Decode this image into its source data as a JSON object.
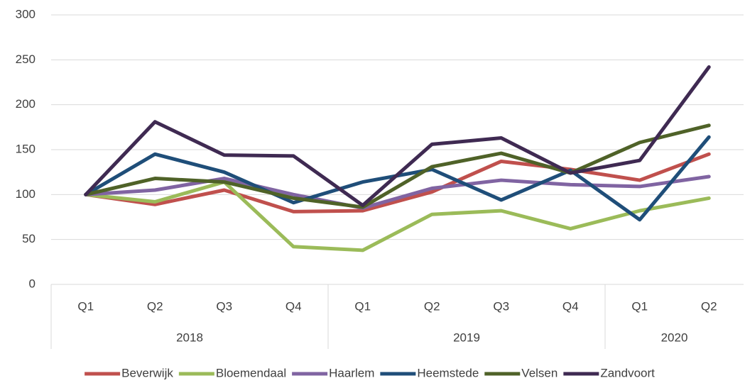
{
  "chart_data": {
    "type": "line",
    "category_groups": [
      {
        "label": "2018",
        "categories": [
          "Q1",
          "Q2",
          "Q3",
          "Q4"
        ]
      },
      {
        "label": "2019",
        "categories": [
          "Q1",
          "Q2",
          "Q3",
          "Q4"
        ]
      },
      {
        "label": "2020",
        "categories": [
          "Q1",
          "Q2"
        ]
      }
    ],
    "series": [
      {
        "name": "Beverwijk",
        "color": "#c0504d",
        "values": [
          100,
          89,
          105,
          81,
          82,
          103,
          137,
          128,
          116,
          145
        ]
      },
      {
        "name": "Bloemendaal",
        "color": "#9bbb59",
        "values": [
          100,
          92,
          114,
          42,
          38,
          78,
          82,
          62,
          82,
          96
        ]
      },
      {
        "name": "Haarlem",
        "color": "#8064a2",
        "values": [
          100,
          105,
          118,
          100,
          85,
          107,
          116,
          111,
          109,
          120
        ]
      },
      {
        "name": "Heemstede",
        "color": "#1f4e79",
        "values": [
          100,
          145,
          125,
          91,
          114,
          128,
          94,
          127,
          72,
          164
        ]
      },
      {
        "name": "Velsen",
        "color": "#4f6228",
        "values": [
          100,
          118,
          114,
          96,
          86,
          131,
          146,
          124,
          158,
          177
        ]
      },
      {
        "name": "Zandvoort",
        "color": "#3f2a52",
        "values": [
          100,
          181,
          144,
          143,
          88,
          156,
          163,
          124,
          138,
          242
        ]
      }
    ],
    "ylim": [
      0,
      300
    ],
    "yticks": [
      0,
      50,
      100,
      150,
      200,
      250,
      300
    ],
    "grid": true,
    "legend": "bottom"
  }
}
